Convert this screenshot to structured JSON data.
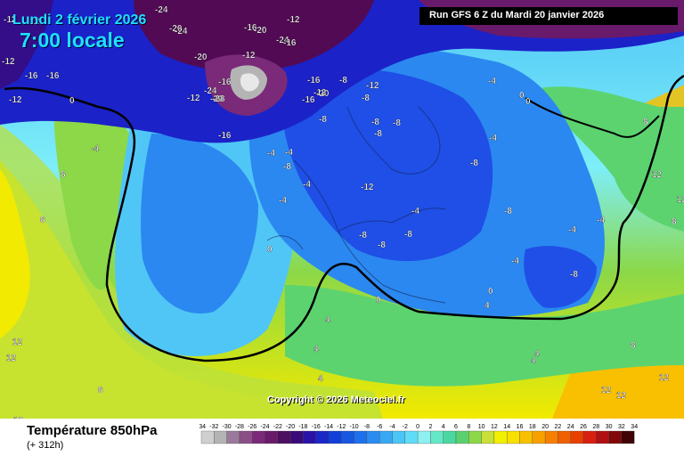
{
  "header": {
    "date": "Lundi 2 février 2026",
    "time": "7:00 locale",
    "run": "Run GFS 6 Z du Mardi 20 janvier 2026"
  },
  "copyright": "Copyright © 2026 Meteociel.fr",
  "footer": {
    "title": "Température 850hPa",
    "lead": "(+ 312h)"
  },
  "legend": {
    "labels": [
      "-34",
      "-32",
      "-30",
      "-28",
      "-26",
      "-24",
      "-22",
      "-20",
      "-18",
      "-16",
      "-14",
      "-12",
      "-10",
      "-8",
      "-6",
      "-4",
      "-2",
      "0",
      "2",
      "4",
      "6",
      "8",
      "10",
      "12",
      "14",
      "16",
      "18",
      "20",
      "22",
      "24",
      "26",
      "28",
      "30",
      "32",
      "34"
    ],
    "colors": [
      "#cfcfcf",
      "#b4b4b4",
      "#9a7a9a",
      "#8a4f86",
      "#7a2a78",
      "#6a1a6a",
      "#4d0f60",
      "#3a0a78",
      "#2a12a8",
      "#1a28c8",
      "#1040d8",
      "#1858e0",
      "#1e70ec",
      "#2a8cf0",
      "#38a8f4",
      "#4cc4f6",
      "#60dcf8",
      "#8ef0f0",
      "#66e8c8",
      "#4ad8a0",
      "#5cd070",
      "#8cd848",
      "#c8e038",
      "#f0f000",
      "#f8e000",
      "#f8c000",
      "#f8a000",
      "#f88000",
      "#f06000",
      "#e84000",
      "#d82010",
      "#b01010",
      "#800808",
      "#400404"
    ]
  },
  "map_colors": {
    "violet": "#520a54",
    "deep_blue": "#1b22c8",
    "blue": "#1f4fe6",
    "mid_blue": "#2b88f0",
    "light_blue": "#50c6f6",
    "cyan": "#7eeef8",
    "aqua": "#58dcc0",
    "green": "#5cd36f",
    "yellow_green": "#b8e040",
    "yellow": "#f2ea00",
    "orange": "#f8c000"
  },
  "isotherm_labels": [
    {
      "text": "-12"
    },
    {
      "text": "-12"
    },
    {
      "text": "-12"
    },
    {
      "text": "-16"
    },
    {
      "text": "-16"
    },
    {
      "text": "-12"
    },
    {
      "text": "-24"
    },
    {
      "text": "-20"
    },
    {
      "text": "-20"
    },
    {
      "text": "-24"
    },
    {
      "text": "-16"
    },
    {
      "text": "-20"
    },
    {
      "text": "-24"
    },
    {
      "text": "-12"
    },
    {
      "text": "-16"
    },
    {
      "text": "-12"
    },
    {
      "text": "-12"
    },
    {
      "text": "-16"
    },
    {
      "text": "-20"
    },
    {
      "text": "-24"
    },
    {
      "text": "-28"
    },
    {
      "text": "-16"
    },
    {
      "text": "-20"
    },
    {
      "text": "-16"
    },
    {
      "text": "-16"
    },
    {
      "text": "-12"
    },
    {
      "text": "-8"
    },
    {
      "text": "-8"
    },
    {
      "text": "-12"
    },
    {
      "text": "-8"
    },
    {
      "text": "-8"
    },
    {
      "text": "-8"
    },
    {
      "text": "-4"
    },
    {
      "text": "-8"
    },
    {
      "text": "-8"
    },
    {
      "text": "-4"
    },
    {
      "text": "-4"
    },
    {
      "text": "-12"
    },
    {
      "text": "-8"
    },
    {
      "text": "-4"
    },
    {
      "text": "-4"
    },
    {
      "text": "-8"
    },
    {
      "text": "-4"
    },
    {
      "text": "-8"
    },
    {
      "text": "-8"
    },
    {
      "text": "-4"
    },
    {
      "text": "-8"
    },
    {
      "text": "0"
    },
    {
      "text": "0"
    },
    {
      "text": "0"
    },
    {
      "text": "-4"
    },
    {
      "text": "-4"
    },
    {
      "text": "4"
    },
    {
      "text": "4"
    },
    {
      "text": "4"
    },
    {
      "text": "8"
    },
    {
      "text": "8"
    },
    {
      "text": "8"
    },
    {
      "text": "4"
    },
    {
      "text": "8"
    },
    {
      "text": "12"
    },
    {
      "text": "12"
    },
    {
      "text": "8"
    },
    {
      "text": "12"
    },
    {
      "text": "12"
    },
    {
      "text": "12"
    },
    {
      "text": "12"
    },
    {
      "text": "4"
    },
    {
      "text": "8"
    },
    {
      "text": "12"
    },
    {
      "text": "12"
    },
    {
      "text": "-8"
    },
    {
      "text": "-4"
    },
    {
      "text": "0"
    },
    {
      "text": "0"
    },
    {
      "text": "0"
    },
    {
      "text": "-4"
    },
    {
      "text": "4"
    }
  ]
}
